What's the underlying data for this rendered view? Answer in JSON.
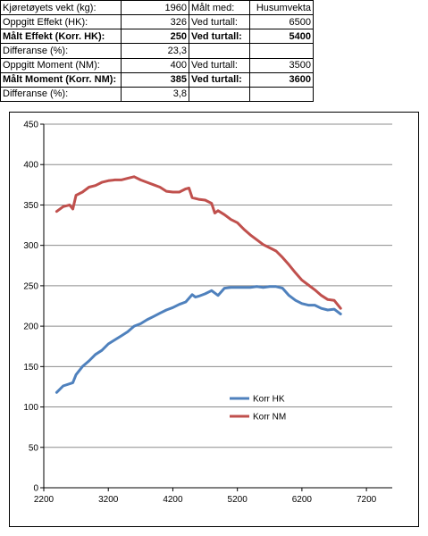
{
  "table": {
    "rows": [
      {
        "label": "Kjøretøyets vekt (kg):",
        "value": "1960",
        "label2": "Målt med:",
        "value2": "Husumvekta",
        "bold": false
      },
      {
        "label": "Oppgitt Effekt (HK):",
        "value": "326",
        "label2": "Ved turtall:",
        "value2": "6500",
        "bold": false
      },
      {
        "label": "Målt Effekt (Korr. HK):",
        "value": "250",
        "label2": "Ved turtall:",
        "value2": "5400",
        "bold": true
      },
      {
        "label": "Differanse (%):",
        "value": "23,3",
        "label2": "",
        "value2": "",
        "bold": false
      },
      {
        "label": "Oppgitt Moment (NM):",
        "value": "400",
        "label2": "Ved turtall:",
        "value2": "3500",
        "bold": false
      },
      {
        "label": "Målt Moment (Korr. NM):",
        "value": "385",
        "label2": "Ved turtall:",
        "value2": "3600",
        "bold": true
      },
      {
        "label": "Differanse (%):",
        "value": "3,8",
        "label2": "",
        "value2": "",
        "bold": false
      }
    ]
  },
  "chart_data": {
    "type": "line",
    "xlim": [
      2200,
      7600
    ],
    "ylim": [
      0,
      450
    ],
    "x_ticks": [
      "2200",
      "3200",
      "4200",
      "5200",
      "6200",
      "7200"
    ],
    "y_ticks": [
      "0",
      "50",
      "100",
      "150",
      "200",
      "250",
      "300",
      "350",
      "400",
      "450"
    ],
    "grid": "horizontal",
    "legend_position": "center-right",
    "series": [
      {
        "name": "Korr HK",
        "color": "#4f81bd",
        "x": [
          2400,
          2500,
          2650,
          2700,
          2800,
          2900,
          3000,
          3100,
          3200,
          3300,
          3400,
          3500,
          3600,
          3700,
          3800,
          3900,
          4000,
          4100,
          4200,
          4300,
          4400,
          4500,
          4550,
          4600,
          4700,
          4800,
          4900,
          5000,
          5100,
          5200,
          5300,
          5400,
          5500,
          5600,
          5700,
          5800,
          5900,
          6000,
          6100,
          6200,
          6300,
          6400,
          6500,
          6600,
          6700,
          6800
        ],
        "values": [
          118,
          126,
          130,
          140,
          150,
          157,
          165,
          170,
          178,
          183,
          188,
          193,
          200,
          203,
          208,
          212,
          216,
          220,
          223,
          227,
          230,
          239,
          236,
          237,
          240,
          244,
          238,
          247,
          248,
          248,
          248,
          248,
          249,
          248,
          249,
          249,
          247,
          238,
          232,
          228,
          226,
          226,
          222,
          220,
          221,
          215
        ]
      },
      {
        "name": "Korr NM",
        "color": "#c0504d",
        "x": [
          2400,
          2500,
          2600,
          2650,
          2700,
          2800,
          2900,
          3000,
          3100,
          3200,
          3300,
          3400,
          3500,
          3600,
          3700,
          3800,
          3900,
          4000,
          4100,
          4200,
          4300,
          4400,
          4450,
          4500,
          4600,
          4700,
          4800,
          4850,
          4900,
          5000,
          5100,
          5200,
          5300,
          5400,
          5500,
          5600,
          5700,
          5800,
          5900,
          6000,
          6100,
          6200,
          6300,
          6400,
          6500,
          6600,
          6700,
          6800
        ],
        "values": [
          342,
          348,
          350,
          345,
          362,
          366,
          372,
          374,
          378,
          380,
          381,
          381,
          383,
          385,
          381,
          378,
          375,
          372,
          367,
          366,
          366,
          370,
          371,
          359,
          357,
          356,
          352,
          340,
          343,
          338,
          332,
          328,
          320,
          313,
          307,
          301,
          297,
          293,
          285,
          276,
          266,
          257,
          251,
          245,
          238,
          233,
          232,
          222
        ]
      }
    ]
  }
}
